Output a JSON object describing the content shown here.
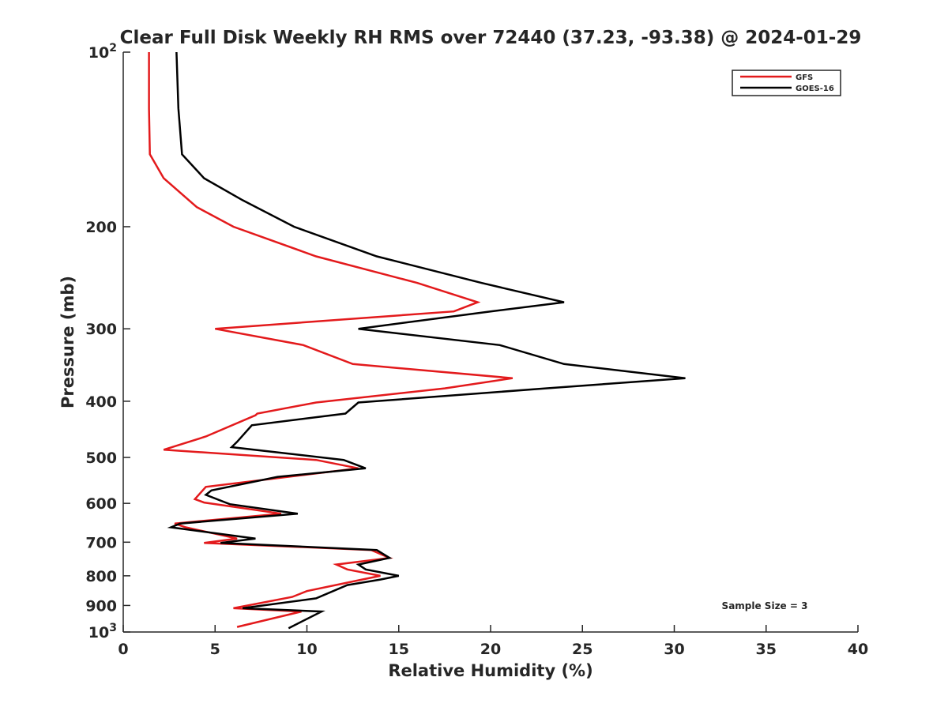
{
  "chart_data": {
    "type": "line",
    "title": "Clear Full Disk Weekly RH RMS over 72440 (37.23, -93.38) @ 2024-01-29",
    "xlabel": "Relative Humidity (%)",
    "ylabel": "Pressure (mb)",
    "xlim": [
      0,
      40
    ],
    "ylim": [
      100,
      1000
    ],
    "y_scale": "log",
    "y_reversed": true,
    "grid": false,
    "legend_position": "top-right",
    "x_ticks": [
      "0",
      "5",
      "10",
      "15",
      "20",
      "25",
      "30",
      "35",
      "40"
    ],
    "y_ticks": [
      {
        "value": 100,
        "base": "10",
        "exp": "2"
      },
      {
        "value": 200,
        "label": "200"
      },
      {
        "value": 300,
        "label": "300"
      },
      {
        "value": 400,
        "label": "400"
      },
      {
        "value": 500,
        "label": "500"
      },
      {
        "value": 600,
        "label": "600"
      },
      {
        "value": 700,
        "label": "700"
      },
      {
        "value": 800,
        "label": "800"
      },
      {
        "value": 900,
        "label": "900"
      },
      {
        "value": 1000,
        "base": "10",
        "exp": "3"
      }
    ],
    "annotation": "Sample Size = 3",
    "series": [
      {
        "name": "GFS",
        "color": "#e31a1c",
        "points": [
          [
            1.4,
            100
          ],
          [
            1.4,
            125
          ],
          [
            1.45,
            150
          ],
          [
            2.2,
            165
          ],
          [
            4.0,
            185
          ],
          [
            6.0,
            200
          ],
          [
            10.5,
            225
          ],
          [
            16.0,
            250
          ],
          [
            19.3,
            270
          ],
          [
            18.0,
            280
          ],
          [
            5.0,
            300
          ],
          [
            9.8,
            320
          ],
          [
            12.5,
            345
          ],
          [
            21.2,
            365
          ],
          [
            17.5,
            380
          ],
          [
            10.5,
            402
          ],
          [
            7.3,
            420
          ],
          [
            7.2,
            423
          ],
          [
            4.5,
            460
          ],
          [
            2.2,
            485
          ],
          [
            10.5,
            505
          ],
          [
            12.8,
            522
          ],
          [
            4.5,
            562
          ],
          [
            3.9,
            590
          ],
          [
            4.4,
            598
          ],
          [
            8.6,
            625
          ],
          [
            2.8,
            650
          ],
          [
            3.4,
            660
          ],
          [
            6.2,
            690
          ],
          [
            4.4,
            702
          ],
          [
            13.5,
            722
          ],
          [
            14.5,
            745
          ],
          [
            11.6,
            765
          ],
          [
            12.2,
            780
          ],
          [
            14.0,
            800
          ],
          [
            13.0,
            812
          ],
          [
            10.0,
            850
          ],
          [
            9.2,
            870
          ],
          [
            6.0,
            910
          ],
          [
            9.7,
            922
          ],
          [
            6.2,
            980
          ]
        ]
      },
      {
        "name": "GOES-16",
        "color": "#000000",
        "points": [
          [
            2.9,
            100
          ],
          [
            3.0,
            125
          ],
          [
            3.2,
            150
          ],
          [
            4.4,
            165
          ],
          [
            6.5,
            180
          ],
          [
            9.3,
            200
          ],
          [
            13.8,
            225
          ],
          [
            19.5,
            250
          ],
          [
            24.0,
            270
          ],
          [
            20.0,
            280
          ],
          [
            12.8,
            300
          ],
          [
            20.5,
            320
          ],
          [
            24.0,
            345
          ],
          [
            30.6,
            365
          ],
          [
            23.0,
            380
          ],
          [
            12.8,
            402
          ],
          [
            12.1,
            420
          ],
          [
            7.0,
            440
          ],
          [
            6.2,
            470
          ],
          [
            5.9,
            480
          ],
          [
            12.0,
            505
          ],
          [
            13.2,
            522
          ],
          [
            8.4,
            540
          ],
          [
            4.8,
            570
          ],
          [
            4.5,
            580
          ],
          [
            5.8,
            602
          ],
          [
            9.5,
            625
          ],
          [
            3.1,
            650
          ],
          [
            2.6,
            660
          ],
          [
            7.2,
            690
          ],
          [
            5.3,
            702
          ],
          [
            13.8,
            722
          ],
          [
            14.5,
            745
          ],
          [
            12.8,
            765
          ],
          [
            13.2,
            780
          ],
          [
            15.0,
            800
          ],
          [
            14.0,
            812
          ],
          [
            12.2,
            830
          ],
          [
            10.5,
            875
          ],
          [
            6.5,
            910
          ],
          [
            10.8,
            922
          ],
          [
            9.0,
            985
          ]
        ]
      }
    ]
  }
}
